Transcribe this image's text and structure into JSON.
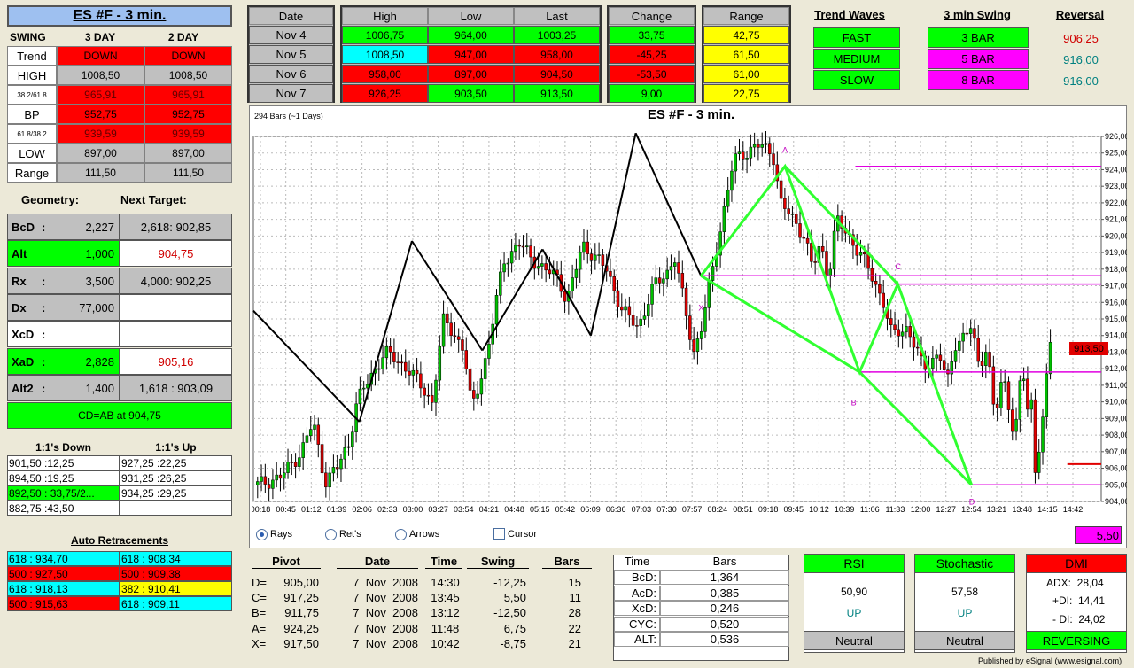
{
  "title": "ES #F - 3 min.",
  "swing": {
    "label": "SWING",
    "col1": "3 DAY",
    "col2": "2 DAY",
    "rows": [
      {
        "label": "Trend",
        "v1": "DOWN",
        "v2": "DOWN",
        "c": "r"
      },
      {
        "label": "HIGH",
        "v1": "1008,50",
        "v2": "1008,50",
        "c": "gr"
      },
      {
        "label": "38.2/61.8",
        "v1": "965,91",
        "v2": "965,91",
        "c": "r"
      },
      {
        "label": "BP",
        "v1": "952,75",
        "v2": "952,75",
        "c": "r"
      },
      {
        "label": "61.8/38.2",
        "v1": "939,59",
        "v2": "939,59",
        "c": "r"
      },
      {
        "label": "LOW",
        "v1": "897,00",
        "v2": "897,00",
        "c": "gr"
      },
      {
        "label": "Range",
        "v1": "111,50",
        "v2": "111,50",
        "c": "gr"
      }
    ]
  },
  "geometry": {
    "h1": "Geometry:",
    "h2": "Next Target:",
    "rows": [
      {
        "label": "BcD",
        "sep": ":",
        "val": "2,227",
        "target": "2,618: 902,85",
        "lc": "gr",
        "tc": "gr",
        "tcol": "#000"
      },
      {
        "label": "Alt",
        "sep": "",
        "val": "1,000",
        "target": "904,75",
        "lc": "g",
        "tc": "w",
        "tcol": "#d00000"
      },
      {
        "label": "Rx",
        "sep": ":",
        "val": "3,500",
        "target": "4,000: 902,25",
        "lc": "gr",
        "tc": "gr",
        "tcol": "#000"
      },
      {
        "label": "Dx",
        "sep": ":",
        "val": "77,000",
        "target": "",
        "lc": "gr",
        "tc": "w",
        "tcol": "#000"
      },
      {
        "label": "XcD",
        "sep": ":",
        "val": "",
        "target": "",
        "lc": "w",
        "tc": "w",
        "tcol": "#000"
      },
      {
        "label": "XaD",
        "sep": ":",
        "val": "2,828",
        "target": "905,16",
        "lc": "g",
        "tc": "w",
        "tcol": "#d00000"
      },
      {
        "label": "Alt2",
        "sep": ":",
        "val": "1,400",
        "target": "1,618 : 903,09",
        "lc": "gr",
        "tc": "gr",
        "tcol": "#000"
      }
    ],
    "banner": "CD=AB at 904,75"
  },
  "ones": {
    "h1": "1:1's Down",
    "h2": "1:1's Up",
    "down": [
      "901,50 :12,25",
      "894,50 :19,25",
      "892,50 : 33,75/2...",
      "882,75 :43,50"
    ],
    "up": [
      "927,25 :22,25",
      "931,25 :26,25",
      "934,25 :29,25",
      ""
    ]
  },
  "retr": {
    "title": "Auto Retracements",
    "rows": [
      {
        "l": "618 : 934,70",
        "lc": "c",
        "r": "618 : 908,34",
        "rc": "c"
      },
      {
        "l": "500 : 927,50",
        "lc": "r",
        "r": "500 : 909,38",
        "rc": "r"
      },
      {
        "l": "618 : 918,13",
        "lc": "c",
        "r": "382 : 910,41",
        "rc": "y"
      },
      {
        "l": "500 : 915,63",
        "lc": "r",
        "r": "618 : 909,11",
        "rc": "c"
      }
    ]
  },
  "daily": {
    "headers": [
      "Date",
      "High",
      "Low",
      "Last",
      "Change",
      "Range"
    ],
    "rows": [
      {
        "date": "Nov  4",
        "high": "1006,75",
        "hc": "g",
        "low": "964,00",
        "lc": "g",
        "last": "1003,25",
        "lac": "g",
        "chg": "33,75",
        "cc": "g",
        "rng": "42,75"
      },
      {
        "date": "Nov  5",
        "high": "1008,50",
        "hc": "c",
        "low": "947,00",
        "lc": "r",
        "last": "958,00",
        "lac": "r",
        "chg": "-45,25",
        "cc": "r",
        "rng": "61,50"
      },
      {
        "date": "Nov  6",
        "high": "958,00",
        "hc": "r",
        "low": "897,00",
        "lc": "r",
        "last": "904,50",
        "lac": "r",
        "chg": "-53,50",
        "cc": "r",
        "rng": "61,00"
      },
      {
        "date": "Nov  7",
        "high": "926,25",
        "hc": "r",
        "low": "903,50",
        "lc": "g",
        "last": "913,50",
        "lac": "g",
        "chg": "9,00",
        "cc": "g",
        "rng": "22,75"
      }
    ]
  },
  "waves": {
    "title": "Trend Waves",
    "items": [
      "FAST",
      "MEDIUM",
      "SLOW"
    ]
  },
  "swing3": {
    "title": "3 min Swing",
    "items": [
      {
        "t": "3 BAR",
        "c": "g"
      },
      {
        "t": "5 BAR",
        "c": "m"
      },
      {
        "t": "8 BAR",
        "c": "m"
      }
    ]
  },
  "reversal": {
    "title": "Reversal",
    "items": [
      {
        "t": "906,25",
        "col": "#d00000"
      },
      {
        "t": "916,00",
        "col": "#008080"
      },
      {
        "t": "916,00",
        "col": "#008080"
      }
    ]
  },
  "chart": {
    "bars_label": "294 Bars (~1 Days)",
    "title": "ES #F - 3 min.",
    "price_label": "913,50",
    "diff_label": "5,50",
    "radio": [
      "Rays",
      "Ret's",
      "Arrows"
    ],
    "cursor": "Cursor",
    "points": {
      "A": "A",
      "B": "B",
      "C": "C",
      "D": "D",
      "X": "X"
    }
  },
  "chart_data": {
    "type": "candlestick",
    "title": "ES #F - 3 min.",
    "x_ticks": [
      "00:18",
      "00:45",
      "01:12",
      "01:39",
      "02:06",
      "02:33",
      "03:00",
      "03:27",
      "03:54",
      "04:21",
      "04:48",
      "05:15",
      "05:42",
      "06:09",
      "06:36",
      "07:03",
      "07:30",
      "07:57",
      "08:24",
      "08:51",
      "09:18",
      "09:45",
      "10:12",
      "10:39",
      "11:06",
      "11:33",
      "12:00",
      "12:27",
      "12:54",
      "13:21",
      "13:48",
      "14:15",
      "14:42"
    ],
    "y_ticks": [
      "926,00",
      "925,00",
      "924,00",
      "923,00",
      "922,00",
      "921,00",
      "920,00",
      "919,00",
      "918,00",
      "917,00",
      "916,00",
      "915,00",
      "914,00",
      "913,00",
      "912,00",
      "911,00",
      "910,00",
      "909,00",
      "908,00",
      "907,00",
      "906,00",
      "905,00",
      "904,00"
    ],
    "ylim": [
      904,
      926
    ],
    "black_pattern": [
      [
        0,
        915.5
      ],
      [
        0.125,
        908.8
      ],
      [
        0.187,
        919.7
      ],
      [
        0.27,
        913.1
      ],
      [
        0.341,
        919.2
      ],
      [
        0.398,
        914.0
      ],
      [
        0.451,
        926.2
      ],
      [
        0.528,
        917.6
      ]
    ],
    "green_pattern": [
      [
        0.528,
        917.6
      ],
      [
        0.627,
        924.2
      ],
      [
        0.715,
        911.8
      ],
      [
        0.76,
        917.1
      ],
      [
        0.847,
        905.0
      ]
    ],
    "magenta_levels": [
      924.2,
      917.6,
      917.1,
      911.8,
      905.0
    ],
    "red_level": 906.25
  },
  "pivots": {
    "headers": [
      "Pivot",
      "Date",
      "Time",
      "Swing",
      "Bars"
    ],
    "rows": [
      {
        "p": "D=",
        "v": "905,00",
        "d": "7  Nov  2008",
        "t": "14:30",
        "s": "-12,25",
        "b": "15"
      },
      {
        "p": "C=",
        "v": "917,25",
        "d": "7  Nov  2008",
        "t": "13:45",
        "s": "5,50",
        "b": "11"
      },
      {
        "p": "B=",
        "v": "911,75",
        "d": "7  Nov  2008",
        "t": "13:12",
        "s": "-12,50",
        "b": "28"
      },
      {
        "p": "A=",
        "v": "924,25",
        "d": "7  Nov  2008",
        "t": "11:48",
        "s": "6,75",
        "b": "22"
      },
      {
        "p": "X=",
        "v": "917,50",
        "d": "7  Nov  2008",
        "t": "10:42",
        "s": "-8,75",
        "b": "21"
      }
    ]
  },
  "ratios": {
    "headers": [
      "Time",
      "Bars"
    ],
    "rows": [
      {
        "k": "BcD:",
        "v": "1,364"
      },
      {
        "k": "AcD:",
        "v": "0,385"
      },
      {
        "k": "XcD:",
        "v": "0,246"
      },
      {
        "k": "CYC:",
        "v": "0,520"
      },
      {
        "k": "ALT:",
        "v": "0,536"
      }
    ]
  },
  "rsi": {
    "title": "RSI",
    "value": "50,90",
    "dir": "UP",
    "state": "Neutral"
  },
  "stoch": {
    "title": "Stochastic",
    "value": "57,58",
    "dir": "UP",
    "state": "Neutral"
  },
  "dmi": {
    "title": "DMI",
    "adx": "ADX:  28,04",
    "pdi": "+DI:  14,41",
    "mdi": "- DI:  24,02",
    "state": "REVERSING"
  },
  "footer": "Published by eSignal (www.esignal.com)"
}
